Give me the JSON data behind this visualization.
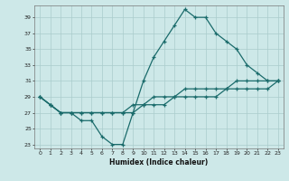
{
  "xlabel": "Humidex (Indice chaleur)",
  "background_color": "#cde8e8",
  "grid_color": "#aacccc",
  "line_color": "#1a6b6b",
  "xlim": [
    -0.5,
    23.5
  ],
  "ylim": [
    22.5,
    40.5
  ],
  "xticks": [
    0,
    1,
    2,
    3,
    4,
    5,
    6,
    7,
    8,
    9,
    10,
    11,
    12,
    13,
    14,
    15,
    16,
    17,
    18,
    19,
    20,
    21,
    22,
    23
  ],
  "yticks": [
    23,
    25,
    27,
    29,
    31,
    33,
    35,
    37,
    39
  ],
  "series1_x": [
    0,
    1,
    2,
    3,
    4,
    5,
    6,
    7,
    8,
    9,
    10,
    11,
    12,
    13,
    14,
    15,
    16,
    17,
    18,
    19,
    20,
    21,
    22,
    23
  ],
  "series1_y": [
    29,
    28,
    27,
    27,
    26,
    26,
    24,
    23,
    23,
    27,
    31,
    34,
    36,
    38,
    40,
    39,
    39,
    37,
    36,
    35,
    33,
    32,
    31,
    31
  ],
  "series2_x": [
    0,
    1,
    2,
    3,
    4,
    5,
    6,
    7,
    8,
    9,
    10,
    11,
    12,
    13,
    14,
    15,
    16,
    17,
    18,
    19,
    20,
    21,
    22,
    23
  ],
  "series2_y": [
    29,
    28,
    27,
    27,
    27,
    27,
    27,
    27,
    27,
    28,
    28,
    29,
    29,
    29,
    30,
    30,
    30,
    30,
    30,
    31,
    31,
    31,
    31,
    31
  ],
  "series3_x": [
    0,
    1,
    2,
    3,
    4,
    5,
    6,
    7,
    8,
    9,
    10,
    11,
    12,
    13,
    14,
    15,
    16,
    17,
    18,
    19,
    20,
    21,
    22,
    23
  ],
  "series3_y": [
    29,
    28,
    27,
    27,
    27,
    27,
    27,
    27,
    27,
    27,
    28,
    28,
    28,
    29,
    29,
    29,
    29,
    29,
    30,
    30,
    30,
    30,
    30,
    31
  ]
}
